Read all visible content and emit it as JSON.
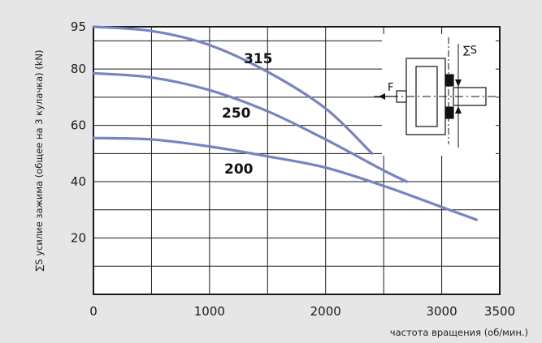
{
  "chart_data": {
    "type": "line",
    "title": "",
    "xlabel": "частота вращения (об/мин.)",
    "ylabel": "∑S усилие зажима (общее на 3 кулачка) (kN)",
    "xlim": [
      0,
      3500
    ],
    "ylim": [
      0,
      95
    ],
    "x_ticks": [
      "0",
      "1000",
      "2000",
      "3000",
      "3500"
    ],
    "y_ticks": [
      "20",
      "40",
      "60",
      "80",
      "95"
    ],
    "grid": true,
    "series": [
      {
        "name": "315",
        "x": [
          0,
          500,
          1000,
          1500,
          2000,
          2400
        ],
        "y": [
          95,
          93.5,
          88.5,
          79,
          66,
          50
        ]
      },
      {
        "name": "250",
        "x": [
          0,
          500,
          1000,
          1500,
          2000,
          2500,
          2700
        ],
        "y": [
          78.5,
          77,
          72.5,
          65,
          55,
          44,
          40
        ]
      },
      {
        "name": "200",
        "x": [
          0,
          500,
          1000,
          1500,
          2000,
          2500,
          3000,
          3300
        ],
        "y": [
          55.5,
          55,
          52.5,
          49,
          45,
          38.5,
          31,
          26.5
        ]
      }
    ],
    "inset_labels": {
      "force": "F",
      "sum_force": "∑S"
    },
    "colors": {
      "curve": "#7684bf",
      "grid": "#1a1a1a",
      "plot_bg": "#ffffff",
      "page_bg": "#e6e6e6"
    }
  }
}
